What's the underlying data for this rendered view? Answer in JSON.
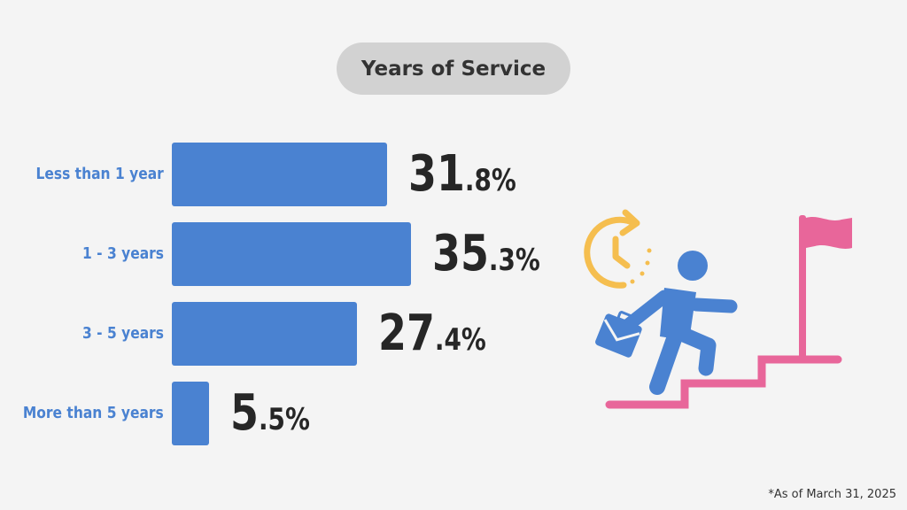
{
  "chart_data": {
    "type": "bar",
    "orientation": "horizontal",
    "title": "Years of Service",
    "categories": [
      "Less than 1 year",
      "1 - 3 years",
      "3 - 5 years",
      "More than 5 years"
    ],
    "values": [
      31.8,
      35.3,
      27.4,
      5.5
    ],
    "value_labels": [
      {
        "int": "31",
        "frac": ".8%"
      },
      {
        "int": "35",
        "frac": ".3%"
      },
      {
        "int": "27",
        "frac": ".4%"
      },
      {
        "int": "5",
        "frac": ".5%"
      }
    ],
    "unit": "%",
    "xlabel": "",
    "ylabel": "",
    "grid": false,
    "legend": "none",
    "bar_color": "#4a82d1"
  },
  "footnote": "*As of March 31, 2025",
  "illustration": {
    "icons": [
      "clock-arrow-icon",
      "person-climbing-icon",
      "briefcase-icon",
      "stairs-icon",
      "goal-flag-icon"
    ],
    "colors": {
      "clock": "#f5be4f",
      "person": "#4a82d1",
      "stairs_flag": "#e8669a"
    }
  }
}
